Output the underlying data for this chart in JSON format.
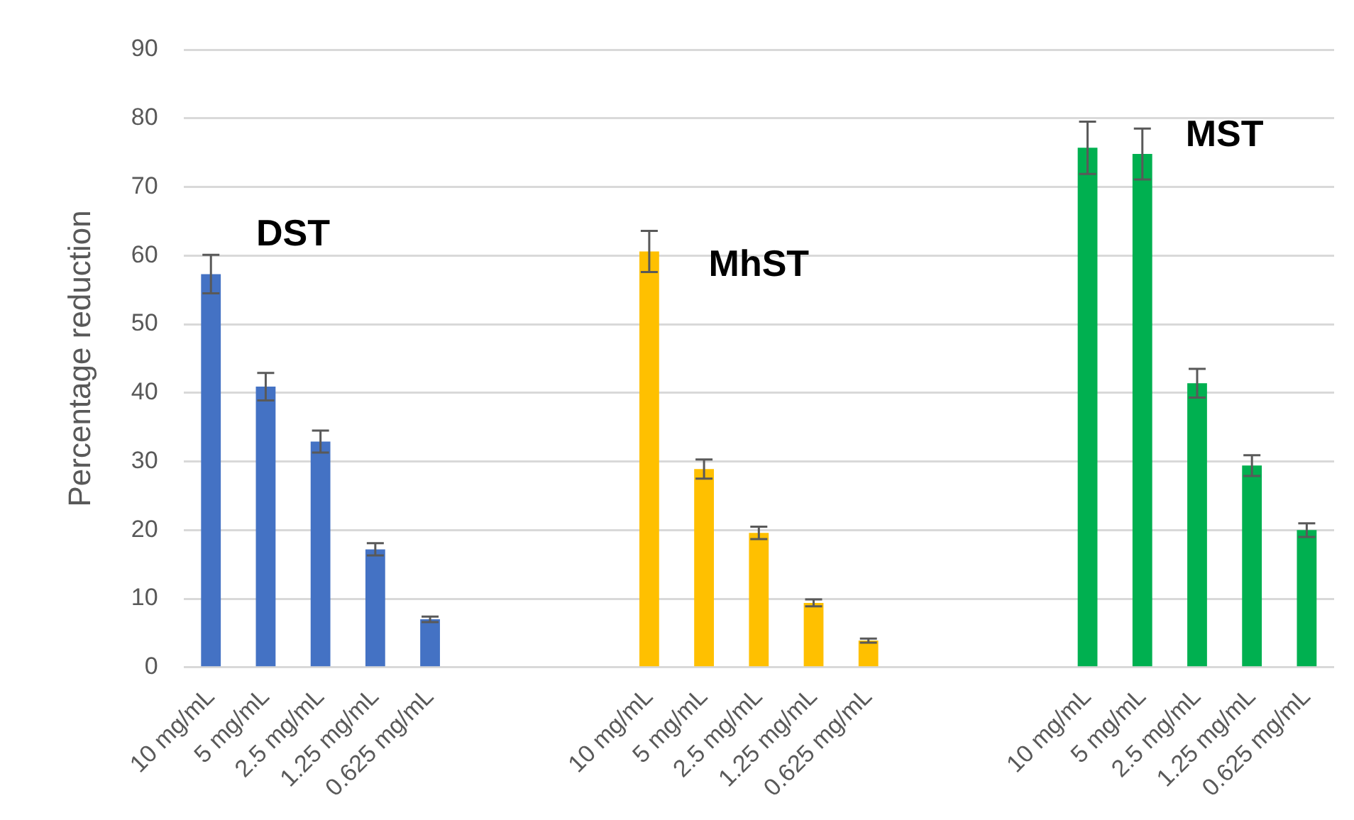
{
  "chart_data": {
    "type": "bar",
    "ylabel": "Percentage reduction",
    "categories": [
      "10 mg/mL",
      "5 mg/mL",
      "2.5 mg/mL",
      "1.25 mg/mL",
      "0.625 mg/mL",
      null,
      null,
      null,
      "10 mg/mL",
      "5 mg/mL",
      "2.5 mg/mL",
      "1.25 mg/mL",
      "0.625 mg/mL",
      null,
      null,
      null,
      "10 mg/mL",
      "5 mg/mL",
      "2.5 mg/mL",
      "1.25 mg/mL",
      "0.625 mg/mL"
    ],
    "series": [
      {
        "name": "DST",
        "color": "#4472c4",
        "values": [
          57.3,
          40.9,
          32.9,
          17.2,
          7.0,
          null,
          null,
          null,
          null,
          null,
          null,
          null,
          null,
          null,
          null,
          null,
          null,
          null,
          null,
          null,
          null
        ],
        "errors": [
          2.8,
          2.0,
          1.6,
          0.9,
          0.4,
          null,
          null,
          null,
          null,
          null,
          null,
          null,
          null,
          null,
          null,
          null,
          null,
          null,
          null,
          null,
          null
        ]
      },
      {
        "name": "MhST",
        "color": "#ffc000",
        "values": [
          null,
          null,
          null,
          null,
          null,
          null,
          null,
          null,
          60.6,
          28.9,
          19.6,
          9.4,
          3.9,
          null,
          null,
          null,
          null,
          null,
          null,
          null,
          null
        ],
        "errors": [
          null,
          null,
          null,
          null,
          null,
          null,
          null,
          null,
          3.0,
          1.4,
          0.9,
          0.5,
          0.3,
          null,
          null,
          null,
          null,
          null,
          null,
          null,
          null
        ]
      },
      {
        "name": "MST",
        "color": "#00b050",
        "values": [
          null,
          null,
          null,
          null,
          null,
          null,
          null,
          null,
          null,
          null,
          null,
          null,
          null,
          null,
          null,
          null,
          75.7,
          74.8,
          41.4,
          29.4,
          20.0
        ],
        "errors": [
          null,
          null,
          null,
          null,
          null,
          null,
          null,
          null,
          null,
          null,
          null,
          null,
          null,
          null,
          null,
          null,
          3.8,
          3.7,
          2.1,
          1.5,
          1.0
        ]
      }
    ],
    "ylim": [
      0,
      90
    ],
    "yticks": [
      0,
      10,
      20,
      30,
      40,
      50,
      60,
      70,
      80,
      90
    ],
    "grid": "y",
    "legend": false
  }
}
